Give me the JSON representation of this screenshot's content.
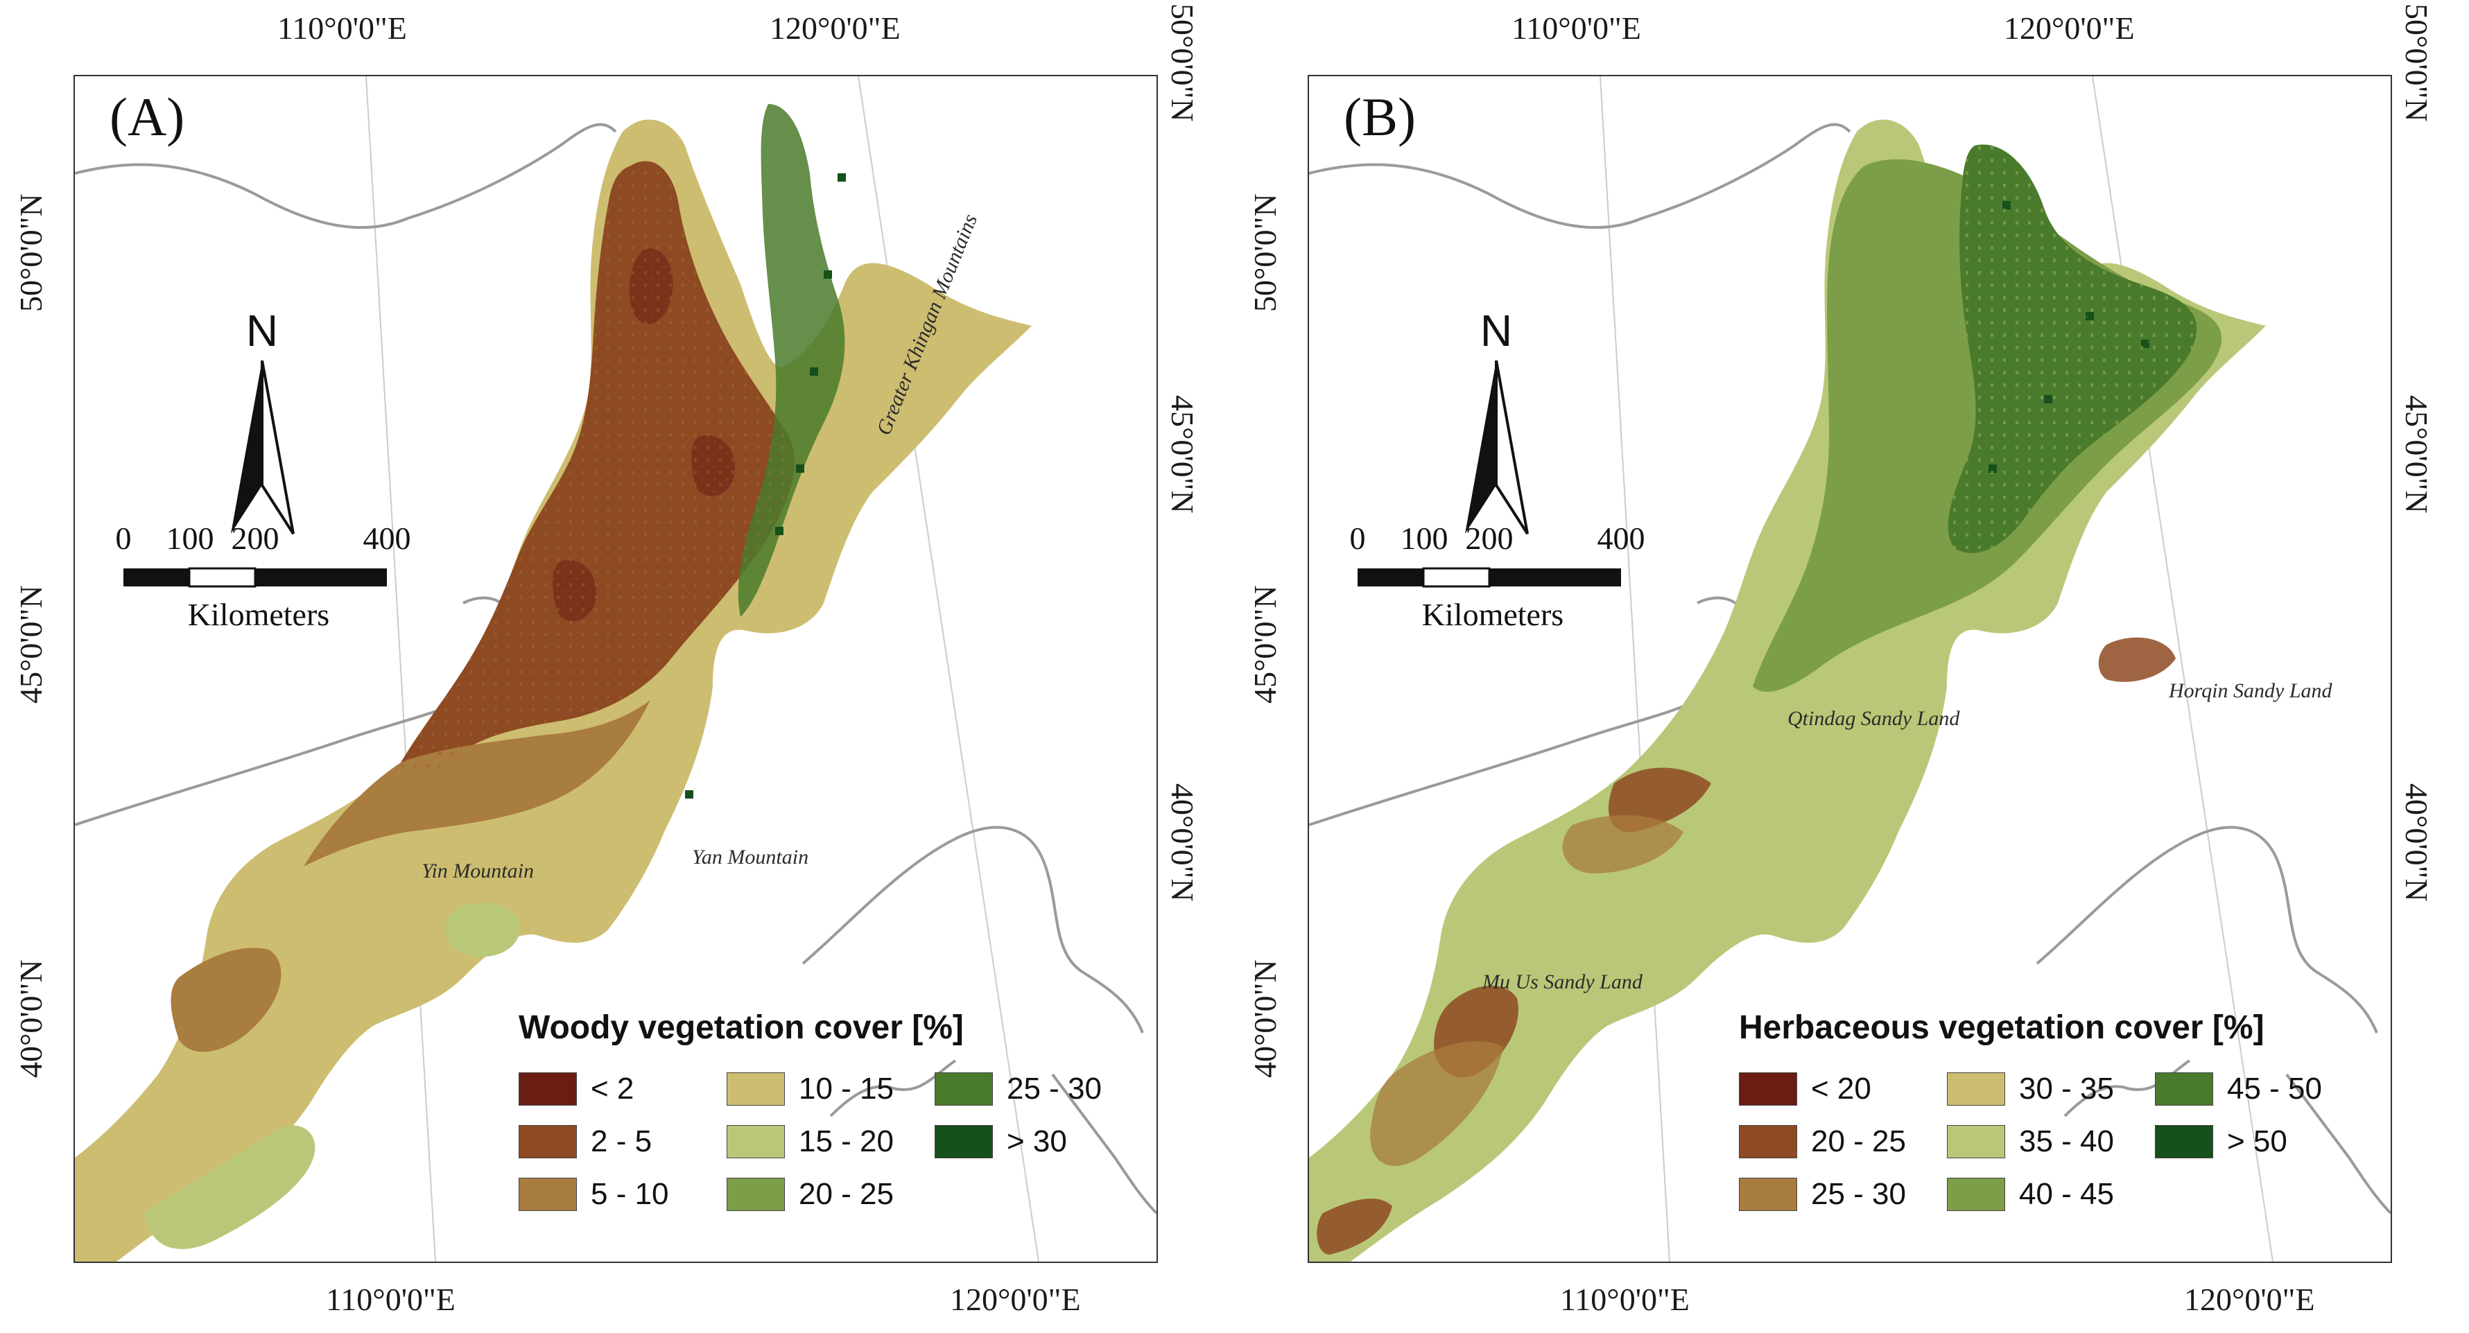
{
  "panels": [
    {
      "label": "(A)",
      "top_coords": [
        "110°0'0\"E",
        "120°0'0\"E"
      ],
      "bottom_coords": [
        "110°0'0\"E",
        "120°0'0\"E"
      ],
      "left_coords": [
        "50°0'0\"N",
        "45°0'0\"N",
        "40°0'0\"N"
      ],
      "right_coords": [
        "50°0'0\"N",
        "45°0'0\"N",
        "40°0'0\"N"
      ],
      "north_label": "N",
      "scale_labels": [
        "0",
        "100",
        "200",
        "400"
      ],
      "scale_unit": "Kilometers",
      "features": [
        "Greater Khingan Mountains",
        "Yin Mountain",
        "Yan Mountain"
      ],
      "legend_title": "Woody vegetation cover [%]",
      "legend": [
        {
          "label": "< 2",
          "color": "#6b1d14"
        },
        {
          "label": "2 - 5",
          "color": "#8e4a22"
        },
        {
          "label": "5 - 10",
          "color": "#a97c3f"
        },
        {
          "label": "10 - 15",
          "color": "#cdbd70"
        },
        {
          "label": "15 - 20",
          "color": "#b9c878"
        },
        {
          "label": "20 - 25",
          "color": "#7d9e48"
        },
        {
          "label": "25 - 30",
          "color": "#4a7b2c"
        },
        {
          "label": "> 30",
          "color": "#16501a"
        }
      ]
    },
    {
      "label": "(B)",
      "top_coords": [
        "110°0'0\"E",
        "120°0'0\"E"
      ],
      "bottom_coords": [
        "110°0'0\"E",
        "120°0'0\"E"
      ],
      "left_coords": [
        "50°0'0\"N",
        "45°0'0\"N",
        "40°0'0\"N"
      ],
      "right_coords": [
        "50°0'0\"N",
        "45°0'0\"N",
        "40°0'0\"N"
      ],
      "north_label": "N",
      "scale_labels": [
        "0",
        "100",
        "200",
        "400"
      ],
      "scale_unit": "Kilometers",
      "features": [
        "Qtindag Sandy Land",
        "Horqin Sandy Land",
        "Mu Us Sandy Land"
      ],
      "legend_title": "Herbaceous vegetation cover [%]",
      "legend": [
        {
          "label": "< 20",
          "color": "#6b1d14"
        },
        {
          "label": "20 - 25",
          "color": "#8e4a22"
        },
        {
          "label": "25 - 30",
          "color": "#a97c3f"
        },
        {
          "label": "30 - 35",
          "color": "#cdbd70"
        },
        {
          "label": "35 - 40",
          "color": "#b9c878"
        },
        {
          "label": "40 - 45",
          "color": "#7d9e48"
        },
        {
          "label": "45 - 50",
          "color": "#4a7b2c"
        },
        {
          "label": "> 50",
          "color": "#16501a"
        }
      ]
    }
  ]
}
